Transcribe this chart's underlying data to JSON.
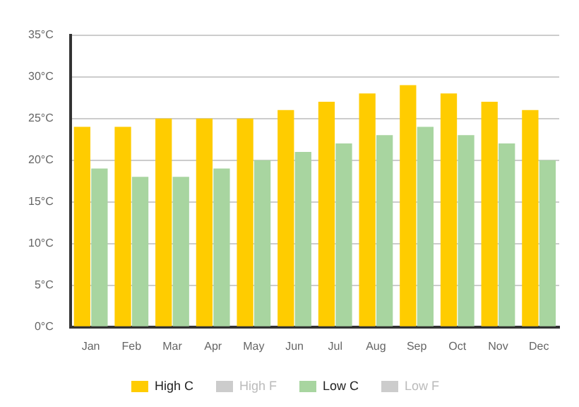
{
  "chart_data": {
    "type": "bar",
    "categories": [
      "Jan",
      "Feb",
      "Mar",
      "Apr",
      "May",
      "Jun",
      "Jul",
      "Aug",
      "Sep",
      "Oct",
      "Nov",
      "Dec"
    ],
    "series": [
      {
        "name": "High C",
        "color": "#ffcc00",
        "values": [
          24,
          24,
          25,
          25,
          25,
          26,
          27,
          28,
          29,
          28,
          27,
          26
        ]
      },
      {
        "name": "High F",
        "color": "#cccccc",
        "values": [
          null,
          null,
          null,
          null,
          null,
          null,
          null,
          null,
          null,
          null,
          null,
          null
        ]
      },
      {
        "name": "Low C",
        "color": "#a8d5a0",
        "values": [
          19,
          18,
          18,
          19,
          20,
          21,
          22,
          23,
          24,
          23,
          22,
          20
        ]
      },
      {
        "name": "Low F",
        "color": "#cccccc",
        "values": [
          null,
          null,
          null,
          null,
          null,
          null,
          null,
          null,
          null,
          null,
          null,
          null
        ]
      }
    ],
    "ylim": [
      0,
      35
    ],
    "yticks": [
      {
        "value": 0,
        "label": "0°C"
      },
      {
        "value": 5,
        "label": "5°C"
      },
      {
        "value": 10,
        "label": "10°C"
      },
      {
        "value": 15,
        "label": "15°C"
      },
      {
        "value": 20,
        "label": "20°C"
      },
      {
        "value": 25,
        "label": "25°C"
      },
      {
        "value": 30,
        "label": "30°C"
      },
      {
        "value": 35,
        "label": "35°C"
      }
    ],
    "grid": "y",
    "legend": "bottom"
  }
}
